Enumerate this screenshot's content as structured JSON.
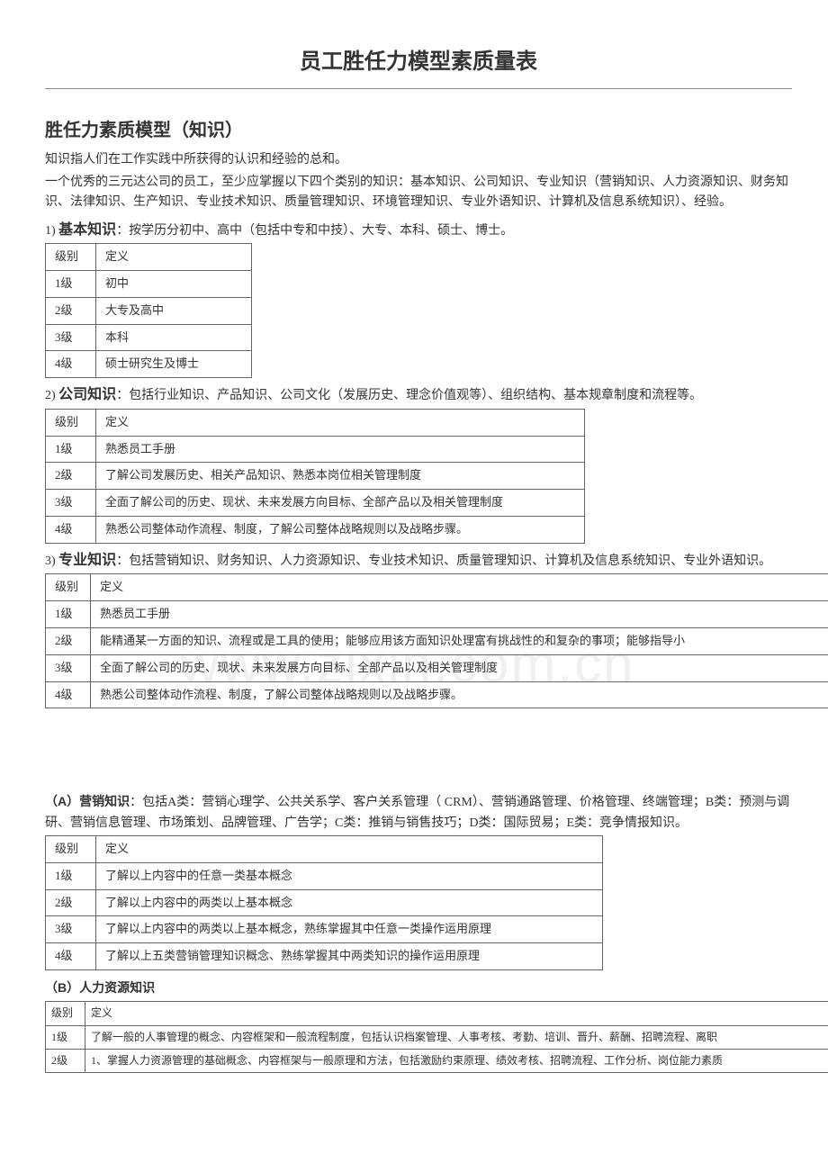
{
  "watermark": "www.zixin.com.cn",
  "title": "员工胜任力模型素质量表",
  "h2": "胜任力素质模型（知识）",
  "intro1": "知识指人们在工作实践中所获得的认识和经验的总和。",
  "intro2": "一个优秀的三元达公司的员工，至少应掌握以下四个类别的知识：基本知识、公司知识、专业知识（营销知识、人力资源知识、财务知识、法律知识、生产知识、专业技术知识、质量管理知识、环境管理知识、专业外语知识、计算机及信息系统知识）、经验。",
  "s1": {
    "num": "1) ",
    "label": "基本知识",
    "desc": "：按学历分初中、高中（包括中专和中技）、大专、本科、硕士、博士。",
    "header": [
      "级别",
      "定义"
    ],
    "rows": [
      [
        "1级",
        "初中"
      ],
      [
        "2级",
        "大专及高中"
      ],
      [
        "3级",
        "本科"
      ],
      [
        "4级",
        "硕士研究生及博士"
      ]
    ]
  },
  "s2": {
    "num": "2) ",
    "label": "公司知识",
    "desc": "：包括行业知识、产品知识、公司文化（发展历史、理念价值观等）、组织结构、基本规章制度和流程等。",
    "header": [
      "级别",
      "定义"
    ],
    "rows": [
      [
        "1级",
        "熟悉员工手册"
      ],
      [
        "2级",
        "了解公司发展历史、相关产品知识、熟悉本岗位相关管理制度"
      ],
      [
        "3级",
        "全面了解公司的历史、现状、未来发展方向目标、全部产品以及相关管理制度"
      ],
      [
        "4级",
        "熟悉公司整体动作流程、制度，了解公司整体战略规则以及战略步骤。"
      ]
    ]
  },
  "s3": {
    "num": "3) ",
    "label": "专业知识",
    "desc": "：包括营销知识、财务知识、人力资源知识、专业技术知识、质量管理知识、计算机及信息系统知识、专业外语知识。",
    "header": [
      "级别",
      "定义"
    ],
    "rows": [
      [
        "1级",
        "熟悉员工手册"
      ],
      [
        "2级",
        "能精通某一方面的知识、流程或是工具的使用；能够应用该方面知识处理富有挑战性的和复杂的事项；能够指导小"
      ],
      [
        "3级",
        "全面了解公司的历史、现状、未来发展方向目标、全部产品以及相关管理制度"
      ],
      [
        "4级",
        "熟悉公司整体动作流程、制度，了解公司整体战略规则以及战略步骤。"
      ]
    ]
  },
  "sA": {
    "label": "（A）营销知识",
    "desc": "：包括A类：营销心理学、公共关系学、客户关系管理（ CRM）、营销通路管理、价格管理、终端管理；B类：预测与调研、营销信息管理、市场策划、品牌管理、广告学；C类：推销与销售技巧；D类：国际贸易；E类：竞争情报知识。",
    "header": [
      "级别",
      "定义"
    ],
    "rows": [
      [
        "1级",
        "了解以上内容中的任意一类基本概念"
      ],
      [
        "2级",
        "了解以上内容中的两类以上基本概念"
      ],
      [
        "3级",
        "了解以上内容中的两类以上基本概念，熟练掌握其中任意一类操作运用原理"
      ],
      [
        "4级",
        "了解以上五类营销管理知识概念、熟练掌握其中两类知识的操作运用原理"
      ]
    ]
  },
  "sB": {
    "label": "（B）人力资源知识",
    "header": [
      "级别",
      "定义"
    ],
    "rows": [
      [
        "1级",
        "了解一般的人事管理的概念、内容框架和一般流程制度，包括认识档案管理、人事考核、考勤、培训、晋升、薪酬、招聘流程、离职"
      ],
      [
        "2级",
        "1、掌握人力资源管理的基础概念、内容框架与一般原理和方法，包括激励约束原理、绩效考核、招聘流程、工作分析、岗位能力素质"
      ]
    ]
  }
}
